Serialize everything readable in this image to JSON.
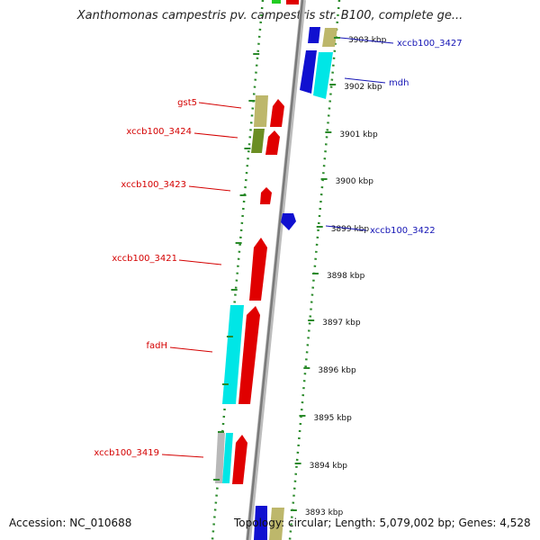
{
  "title": "Xanthomonas campestris pv. campestris str. B100, complete ge...",
  "footer": {
    "accession": "Accession: NC_010688",
    "topology": "Topology: circular; Length: 5,079,002 bp; Genes: 4,528"
  },
  "colors": {
    "backbone": "#8c8c8c",
    "tick": "#2a8a2a",
    "forward_gene": "#e00000",
    "reverse_gene": "#1010d0",
    "cds_cyan": "#00e6e6",
    "cds_olive": "#bdb76b",
    "cds_green": "#6b8e23",
    "other": "#b8b8b8",
    "forward_label": "#d40000",
    "reverse_label": "#1515b5"
  },
  "scale": {
    "unit": "kbp",
    "labels": [
      "3903 kbp",
      "3902 kbp",
      "3901 kbp",
      "3900 kbp",
      "3899 kbp",
      "3898 kbp",
      "3897 kbp",
      "3896 kbp",
      "3895 kbp",
      "3894 kbp",
      "3893 kbp"
    ]
  },
  "forward_labels": [
    "gst5",
    "xccb100_3424",
    "xccb100_3423",
    "xccb100_3421",
    "fadH",
    "xccb100_3419"
  ],
  "reverse_labels": [
    "xccb100_3427",
    "mdh",
    "xccb100_3422"
  ]
}
